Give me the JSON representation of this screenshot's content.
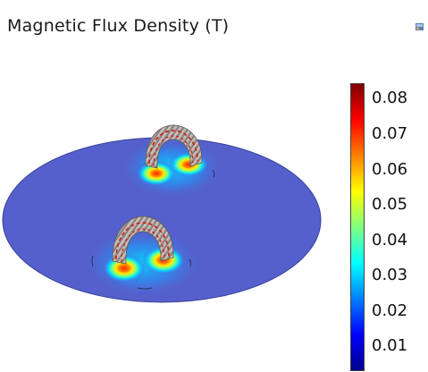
{
  "plot": {
    "title": "Magnetic Flux Density (T)"
  },
  "icons": {
    "corner": "view-toolbar-icon"
  },
  "colorbar": {
    "ticks": [
      "0.08",
      "0.07",
      "0.06",
      "0.05",
      "0.04",
      "0.03",
      "0.02",
      "0.01"
    ],
    "colormap": [
      "#00008f",
      "#0000ff",
      "#0080ff",
      "#00ffff",
      "#80ff80",
      "#ffff00",
      "#ff8000",
      "#ff0000",
      "#800000"
    ]
  },
  "colors": {
    "disk": "#5560cc",
    "coil": "#b3a8a3",
    "field_lines": "#d11a1a"
  }
}
